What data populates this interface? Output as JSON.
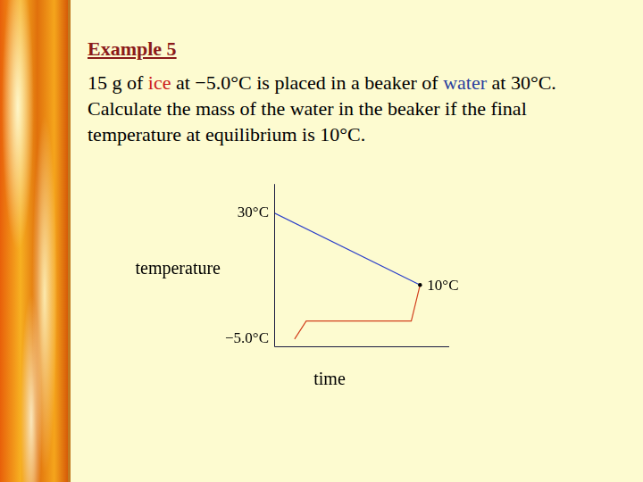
{
  "chart_data": {
    "type": "line",
    "title": "Example 5",
    "subtitle": [
      {
        "text": "15 g of "
      },
      {
        "text": "ice",
        "color": "#cc1a1a"
      },
      {
        "text": " at −5.0°C is placed in a beaker of "
      },
      {
        "text": "water",
        "color": "#2a3f9e"
      },
      {
        "text": " at 30°C.  Calculate the mass of the water in the beaker if the final temperature at equilibrium is 10°C."
      }
    ],
    "ylabel": "temperature",
    "xlabel": "time",
    "series": [
      {
        "color": "#2b3fc9",
        "x": [
          0,
          10
        ],
        "values": [
          30,
          10
        ]
      },
      {
        "color": "#d2401e",
        "x": [
          1.4,
          2.2,
          9.4,
          10
        ],
        "values": [
          -5,
          0,
          0,
          10
        ]
      }
    ],
    "xlim": [
      0,
      12
    ],
    "ylim": [
      -7,
      38
    ],
    "yticks": [
      {
        "value": 30,
        "label": "30°C"
      },
      {
        "value": -5,
        "label": "−5.0°C"
      }
    ],
    "annotations": [
      {
        "text": "10°C",
        "x": 10,
        "y": 10
      }
    ],
    "grid": false,
    "tick_labels": "y"
  }
}
